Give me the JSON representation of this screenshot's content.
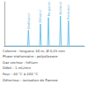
{
  "chart_data": {
    "type": "line",
    "x": [
      0,
      2.9,
      3.0,
      3.1,
      4.4,
      4.5,
      4.6,
      5.4,
      5.5,
      5.6,
      6.9,
      7.0,
      7.1,
      7.9,
      8.0,
      8.1,
      10
    ],
    "values": [
      0,
      0,
      50,
      0,
      0,
      70,
      0,
      0,
      90,
      0,
      0,
      95,
      0,
      0,
      80,
      0,
      0
    ],
    "color": "#4fb8e8",
    "xlim": [
      0,
      10
    ],
    "ylim": [
      0,
      140
    ],
    "tick_labels": false,
    "grid": false,
    "annotations": [
      {
        "x": 3.0,
        "y": 50,
        "text": "Méthanol"
      },
      {
        "x": 4.5,
        "y": 70,
        "text": "Éthanol"
      },
      {
        "x": 5.5,
        "y": 90,
        "text": "Propanol"
      },
      {
        "x": 7.0,
        "y": 95,
        "text": "Butanol"
      },
      {
        "x": 8.0,
        "y": 80,
        "text": "Pentanol"
      }
    ],
    "notes": [
      "Colonne : longueur 30 m, Ø 0,25 mm",
      "Phase stationnaire : polysiloxane",
      "Gaz vecteur : hélium",
      "Débit : 1 mL/min",
      "Four : 40 °C à 200 °C",
      "Détecteur : ionisation de flamme"
    ]
  }
}
